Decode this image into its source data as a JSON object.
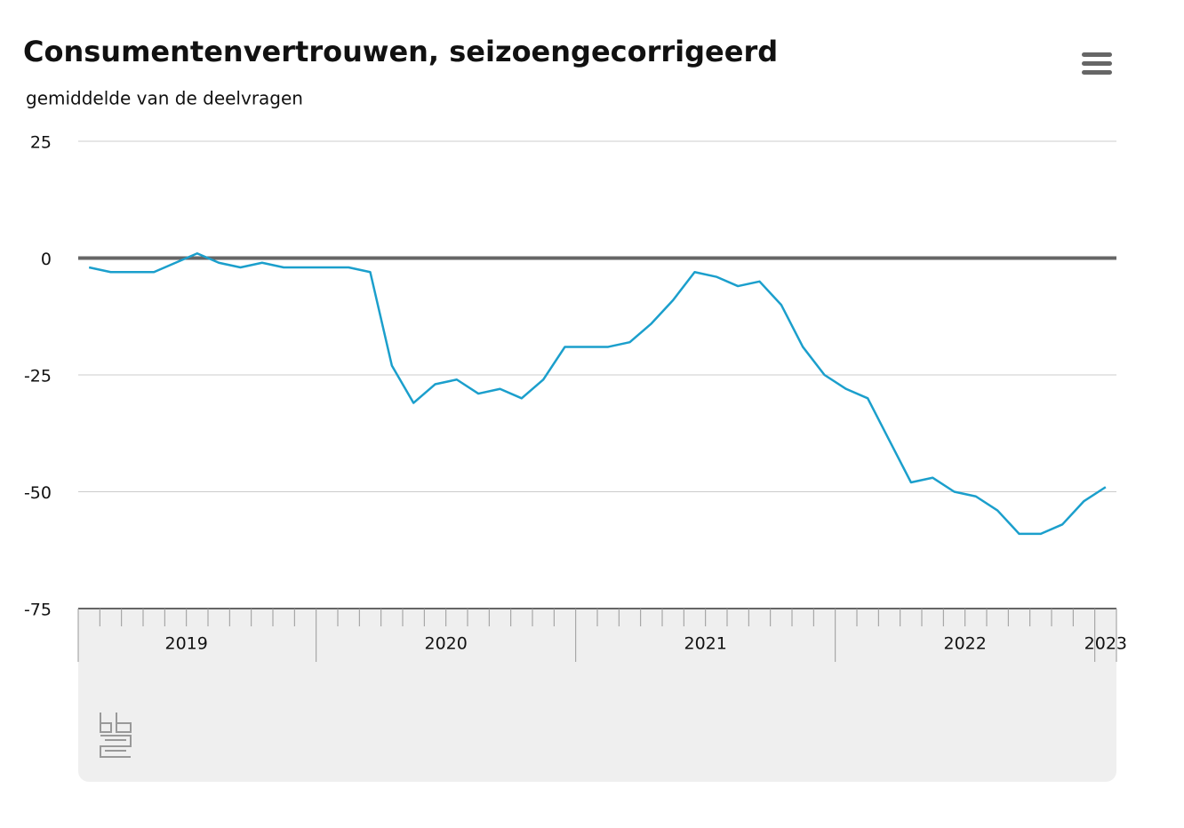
{
  "chart_data": {
    "type": "line",
    "title": "Consumentenvertrouwen, seizoengecorrigeerd",
    "subtitle": "gemiddelde van de deelvragen",
    "x": [
      2019.125,
      2019.2083,
      2019.2917,
      2019.375,
      2019.4583,
      2019.5417,
      2019.625,
      2019.7083,
      2019.7917,
      2019.875,
      2019.9583,
      2020.0417,
      2020.125,
      2020.2083,
      2020.2917,
      2020.375,
      2020.4583,
      2020.5417,
      2020.625,
      2020.7083,
      2020.7917,
      2020.875,
      2020.9583,
      2021.0417,
      2021.125,
      2021.2083,
      2021.2917,
      2021.375,
      2021.4583,
      2021.5417,
      2021.625,
      2021.7083,
      2021.7917,
      2021.875,
      2021.9583,
      2022.0417,
      2022.125,
      2022.2083,
      2022.2917,
      2022.375,
      2022.4583,
      2022.5417,
      2022.625,
      2022.7083,
      2022.7917,
      2022.875,
      2022.9583,
      2023.0417
    ],
    "series": [
      {
        "color": "#1b9fcc",
        "values": [
          -2,
          -3,
          -3,
          -3,
          -1,
          1,
          -1,
          -2,
          -1,
          -2,
          -2,
          -2,
          -2,
          -3,
          -23,
          -31,
          -27,
          -26,
          -29,
          -28,
          -30,
          -26,
          -19,
          -19,
          -19,
          -18,
          -14,
          -9,
          -3,
          -4,
          -6,
          -5,
          -10,
          -19,
          -25,
          -28,
          -30,
          -39,
          -48,
          -47,
          -50,
          -51,
          -54,
          -59,
          -59,
          -57,
          -52,
          -49
        ]
      }
    ],
    "xlim": [
      2019.0833,
      2023.0833
    ],
    "xticks": [
      {
        "value": 2019.5,
        "label": "2019"
      },
      {
        "value": 2020.5,
        "label": "2020"
      },
      {
        "value": 2021.5,
        "label": "2021"
      },
      {
        "value": 2022.5,
        "label": "2022"
      },
      {
        "value": 2023.0417,
        "label": "2023"
      }
    ],
    "ylim": [
      -75,
      25
    ],
    "yticks": [
      25,
      0,
      -25,
      -50,
      -75
    ],
    "grid": true
  }
}
